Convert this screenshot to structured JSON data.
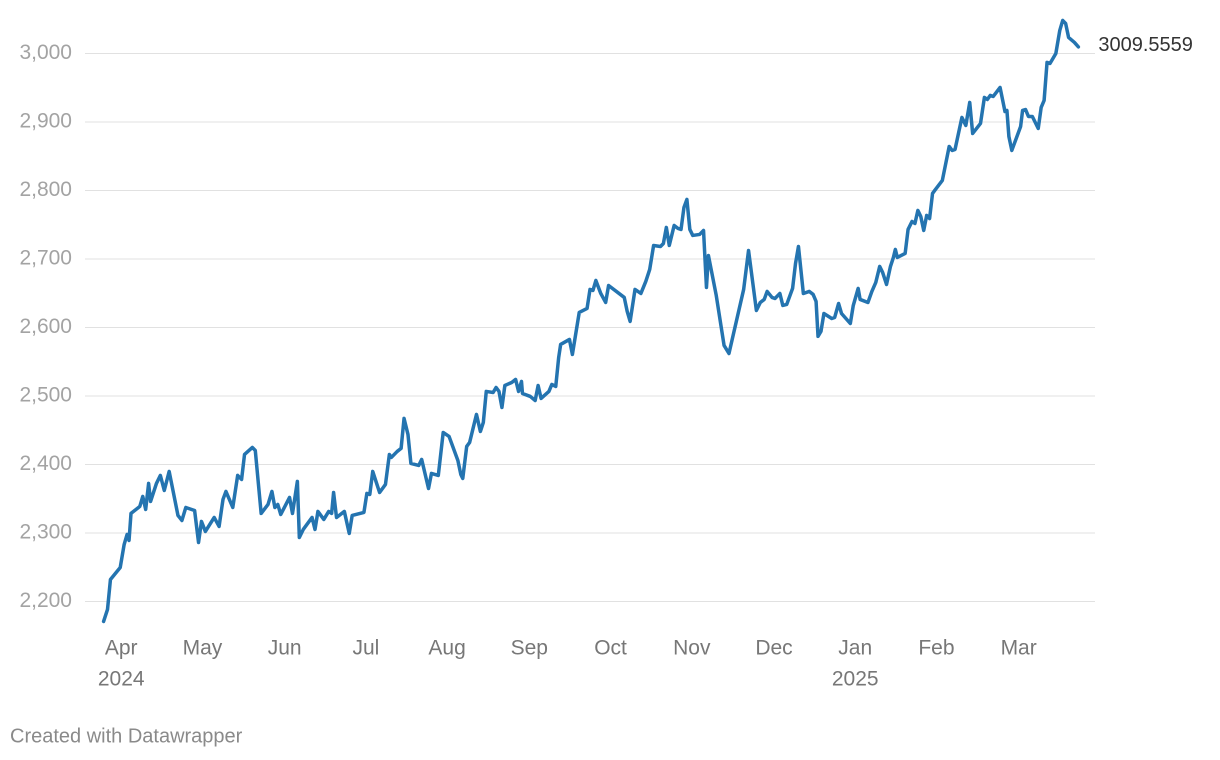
{
  "chart_data": {
    "type": "line",
    "x": [
      2024.232,
      2024.236,
      2024.239,
      2024.249,
      2024.253,
      2024.256,
      2024.258,
      2024.26,
      2024.269,
      2024.272,
      2024.275,
      2024.278,
      2024.28,
      2024.286,
      2024.29,
      2024.294,
      2024.299,
      2024.308,
      2024.312,
      2024.316,
      2024.325,
      2024.329,
      2024.332,
      2024.336,
      2024.345,
      2024.35,
      2024.354,
      2024.357,
      2024.364,
      2024.369,
      2024.373,
      2024.376,
      2024.384,
      2024.387,
      2024.393,
      2024.4,
      2024.404,
      2024.407,
      2024.41,
      2024.413,
      2024.422,
      2024.425,
      2024.43,
      2024.432,
      2024.436,
      2024.445,
      2024.448,
      2024.451,
      2024.457,
      2024.462,
      2024.465,
      2024.467,
      2024.47,
      2024.478,
      2024.483,
      2024.486,
      2024.498,
      2024.501,
      2024.504,
      2024.507,
      2024.514,
      2024.52,
      2024.524,
      2024.526,
      2024.532,
      2024.536,
      2024.539,
      2024.543,
      2024.546,
      2024.554,
      2024.557,
      2024.564,
      2024.567,
      2024.574,
      2024.579,
      2024.585,
      2024.594,
      2024.597,
      2024.599,
      2024.603,
      2024.606,
      2024.613,
      2024.617,
      2024.62,
      2024.623,
      2024.63,
      2024.633,
      2024.636,
      2024.639,
      2024.642,
      2024.649,
      2024.653,
      2024.656,
      2024.659,
      2024.66,
      2024.668,
      2024.673,
      2024.676,
      2024.679,
      2024.687,
      2024.69,
      2024.694,
      2024.697,
      2024.699,
      2024.708,
      2024.711,
      2024.718,
      2024.726,
      2024.729,
      2024.732,
      2024.735,
      2024.74,
      2024.745,
      2024.748,
      2024.764,
      2024.767,
      2024.77,
      2024.775,
      2024.781,
      2024.786,
      2024.79,
      2024.794,
      2024.801,
      2024.804,
      2024.807,
      2024.81,
      2024.815,
      2024.819,
      2024.822,
      2024.825,
      2024.828,
      2024.831,
      2024.834,
      2024.841,
      2024.845,
      2024.848,
      2024.85,
      2024.858,
      2024.866,
      2024.871,
      2024.886,
      2024.891,
      2024.899,
      2024.903,
      2024.907,
      2024.91,
      2024.915,
      2024.918,
      2024.923,
      2024.926,
      2024.93,
      2024.936,
      2024.939,
      2024.942,
      2024.947,
      2024.953,
      2024.957,
      2024.96,
      2024.962,
      2024.965,
      2024.968,
      2024.976,
      2024.979,
      2024.983,
      2024.986,
      2024.995,
      2024.998,
      2025.003,
      2025.005,
      2025.013,
      2025.017,
      2025.021,
      2025.025,
      2025.028,
      2025.032,
      2025.036,
      2025.039,
      2025.041,
      2025.043,
      2025.051,
      2025.054,
      2025.058,
      2025.061,
      2025.064,
      2025.067,
      2025.07,
      2025.073,
      2025.076,
      2025.079,
      2025.082,
      2025.089,
      2025.096,
      2025.099,
      2025.102,
      2025.109,
      2025.113,
      2025.117,
      2025.12,
      2025.128,
      2025.132,
      2025.135,
      2025.138,
      2025.141,
      2025.148,
      2025.153,
      2025.155,
      2025.157,
      2025.16,
      2025.169,
      2025.171,
      2025.174,
      2025.177,
      2025.181,
      2025.187,
      2025.19,
      2025.193,
      2025.196,
      2025.199,
      2025.205,
      2025.209,
      2025.212,
      2025.215,
      2025.218,
      2025.224,
      2025.228
    ],
    "series": [
      {
        "color": "#2474b0",
        "values": [
          2170.8,
          2188.3,
          2232.1,
          2249.6,
          2283.2,
          2297.8,
          2289.1,
          2328.5,
          2338.7,
          2353.3,
          2334.3,
          2372.3,
          2346.0,
          2372.3,
          2384.0,
          2362.0,
          2389.8,
          2325.5,
          2318.2,
          2337.2,
          2332.8,
          2286.1,
          2316.8,
          2302.2,
          2322.6,
          2309.5,
          2348.9,
          2360.6,
          2337.2,
          2384.0,
          2378.1,
          2414.6,
          2424.8,
          2420.4,
          2328.5,
          2341.6,
          2360.6,
          2337.2,
          2341.6,
          2327.0,
          2351.8,
          2328.5,
          2375.2,
          2293.4,
          2305.1,
          2322.6,
          2305.1,
          2331.4,
          2319.7,
          2331.4,
          2328.5,
          2359.1,
          2322.6,
          2331.4,
          2299.3,
          2325.5,
          2330.0,
          2357.7,
          2356.2,
          2389.8,
          2359.1,
          2370.8,
          2414.6,
          2410.2,
          2419.0,
          2423.4,
          2467.2,
          2443.8,
          2401.5,
          2398.5,
          2407.3,
          2364.9,
          2386.9,
          2384.0,
          2446.7,
          2440.9,
          2405.8,
          2385.4,
          2379.6,
          2426.3,
          2432.1,
          2473.0,
          2448.2,
          2461.3,
          2506.6,
          2505.1,
          2512.4,
          2506.6,
          2483.2,
          2515.3,
          2519.7,
          2524.1,
          2506.6,
          2521.2,
          2503.6,
          2499.3,
          2493.4,
          2515.3,
          2496.4,
          2506.6,
          2516.8,
          2513.9,
          2556.2,
          2575.2,
          2582.5,
          2560.6,
          2621.9,
          2627.7,
          2655.5,
          2654.0,
          2668.6,
          2649.6,
          2636.5,
          2661.3,
          2643.8,
          2623.4,
          2608.8,
          2655.5,
          2649.6,
          2667.2,
          2684.7,
          2719.7,
          2718.2,
          2722.6,
          2746.0,
          2719.7,
          2748.9,
          2744.5,
          2743.1,
          2775.2,
          2786.9,
          2743.1,
          2734.3,
          2735.8,
          2741.6,
          2658.4,
          2705.1,
          2646.7,
          2573.7,
          2562.0,
          2655.5,
          2712.4,
          2624.8,
          2636.5,
          2640.9,
          2652.6,
          2643.8,
          2642.3,
          2649.6,
          2632.1,
          2633.6,
          2657.0,
          2693.4,
          2718.2,
          2649.6,
          2652.6,
          2648.2,
          2638.0,
          2586.9,
          2594.2,
          2620.4,
          2613.1,
          2614.6,
          2635.0,
          2620.4,
          2605.8,
          2632.1,
          2657.0,
          2640.9,
          2636.5,
          2652.6,
          2665.7,
          2689.1,
          2680.3,
          2662.8,
          2689.1,
          2702.2,
          2713.9,
          2702.2,
          2708.0,
          2743.1,
          2754.7,
          2751.8,
          2770.8,
          2762.0,
          2741.6,
          2763.5,
          2759.1,
          2795.6,
          2801.5,
          2814.6,
          2864.2,
          2858.4,
          2859.9,
          2906.6,
          2894.9,
          2928.5,
          2883.2,
          2897.8,
          2935.8,
          2932.8,
          2938.7,
          2937.2,
          2950.4,
          2915.3,
          2916.8,
          2878.8,
          2858.4,
          2893.4,
          2916.8,
          2918.2,
          2908.0,
          2908.0,
          2890.5,
          2921.2,
          2931.4,
          2986.9,
          2985.4,
          3000.0,
          3033.6,
          3048.2,
          3043.8,
          3023.4,
          3016.1,
          3009.5559
        ]
      }
    ],
    "xlim": [
      2024.213,
      2025.245
    ],
    "xticks": [
      {
        "value": 2024.25,
        "label": "Apr"
      },
      {
        "value": 2024.333,
        "label": "May"
      },
      {
        "value": 2024.417,
        "label": "Jun"
      },
      {
        "value": 2024.5,
        "label": "Jul"
      },
      {
        "value": 2024.583,
        "label": "Aug"
      },
      {
        "value": 2024.667,
        "label": "Sep"
      },
      {
        "value": 2024.75,
        "label": "Oct"
      },
      {
        "value": 2024.833,
        "label": "Nov"
      },
      {
        "value": 2024.917,
        "label": "Dec"
      },
      {
        "value": 2025.0,
        "label": "Jan"
      },
      {
        "value": 2025.083,
        "label": "Feb"
      },
      {
        "value": 2025.167,
        "label": "Mar"
      }
    ],
    "year_labels": [
      {
        "value": 2024.25,
        "label": "2024"
      },
      {
        "value": 2025.0,
        "label": "2025"
      }
    ],
    "ylim": [
      2170,
      3050
    ],
    "yticks": [
      {
        "value": 2200,
        "label": "2,200"
      },
      {
        "value": 2300,
        "label": "2,300"
      },
      {
        "value": 2400,
        "label": "2,400"
      },
      {
        "value": 2500,
        "label": "2,500"
      },
      {
        "value": 2600,
        "label": "2,600"
      },
      {
        "value": 2700,
        "label": "2,700"
      },
      {
        "value": 2800,
        "label": "2,800"
      },
      {
        "value": 2900,
        "label": "2,900"
      },
      {
        "value": 3000,
        "label": "3,000"
      }
    ],
    "grid": true,
    "credit": "Created with Datawrapper"
  }
}
